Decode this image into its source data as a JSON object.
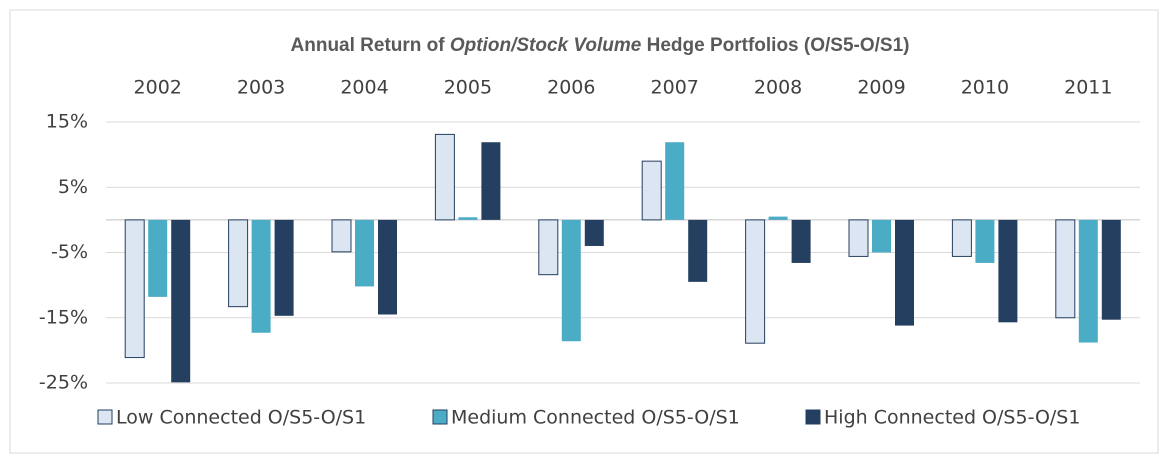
{
  "chart_data": {
    "type": "bar",
    "title": [
      "Annual Return of ",
      "Option/Stock Volume",
      " Hedge Portfolios  (O/S5-O/S1)"
    ],
    "categories": [
      "2002",
      "2003",
      "2004",
      "2005",
      "2006",
      "2007",
      "2008",
      "2009",
      "2010",
      "2011"
    ],
    "series": [
      {
        "name": "Low Connected O/S5-O/S1",
        "color": "#dce6f2",
        "values": [
          -21.1,
          -13.3,
          -4.9,
          13.1,
          -8.4,
          9.0,
          -18.9,
          -5.6,
          -5.6,
          -15.0
        ]
      },
      {
        "name": "Medium Connected O/S5-O/S1",
        "color": "#4bacc6",
        "values": [
          -11.8,
          -17.3,
          -10.2,
          0.4,
          -18.6,
          11.9,
          0.5,
          -5.0,
          -6.6,
          -18.8
        ]
      },
      {
        "name": "High Connected O/S5-O/S1",
        "color": "#243f60",
        "values": [
          -24.9,
          -14.7,
          -14.5,
          11.9,
          -4.0,
          -9.5,
          -6.6,
          -16.2,
          -15.7,
          -15.3
        ]
      }
    ],
    "ylim": [
      -25,
      15
    ],
    "yticks": [
      {
        "value": -25,
        "label": "-25%"
      },
      {
        "value": -15,
        "label": "-15%"
      },
      {
        "value": -5,
        "label": "-5%"
      },
      {
        "value": 5,
        "label": "5%"
      },
      {
        "value": 15,
        "label": "15%"
      }
    ],
    "grid": true,
    "legend": "bottom"
  }
}
